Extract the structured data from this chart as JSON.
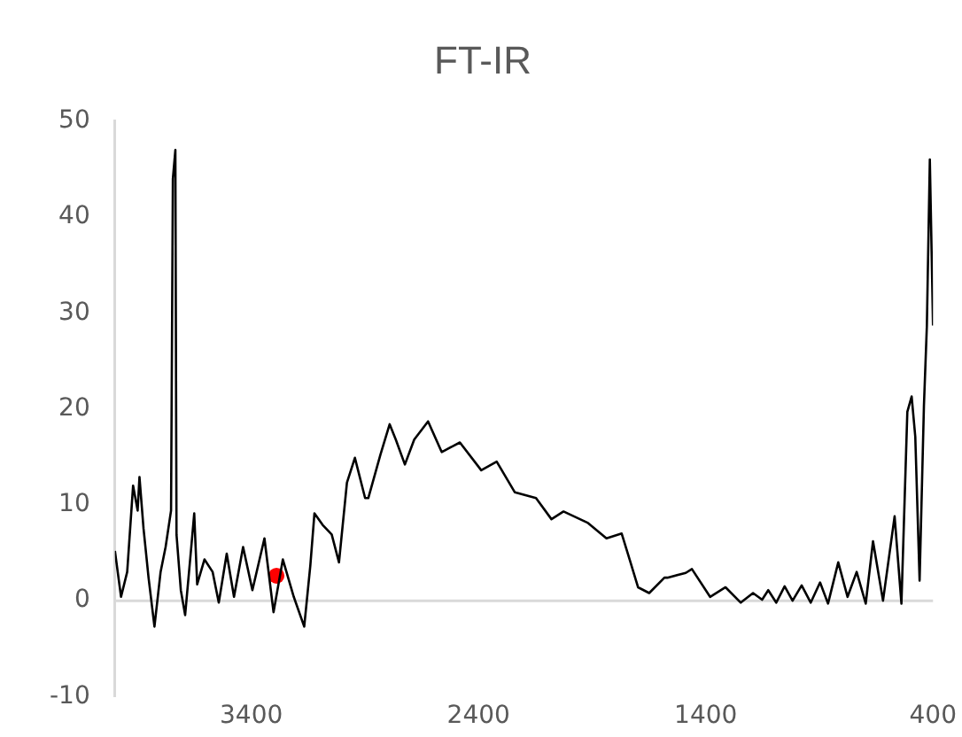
{
  "chart_data": {
    "type": "line",
    "title": "FT-IR",
    "xlim": [
      4000,
      400
    ],
    "xticks": [
      3400,
      2400,
      1400,
      400
    ],
    "ylim": [
      -10,
      50
    ],
    "yticks": [
      -10,
      0,
      10,
      20,
      30,
      40,
      50
    ],
    "grid": false,
    "legend": false,
    "marker": "none",
    "ref_lines": [
      {
        "axis": "y",
        "value": 0,
        "color": "#d9d9d9"
      }
    ],
    "series": [
      {
        "color": "#000000",
        "x": [
          4000,
          3973,
          3946,
          3920,
          3900,
          3892,
          3874,
          3852,
          3826,
          3799,
          3777,
          3753,
          3745,
          3734,
          3729,
          3710,
          3691,
          3664,
          3651,
          3638,
          3606,
          3570,
          3543,
          3508,
          3476,
          3436,
          3395,
          3342,
          3302,
          3261,
          3213,
          3167,
          3140,
          3122,
          3086,
          3046,
          3014,
          2979,
          2944,
          2899,
          2885,
          2832,
          2791,
          2764,
          2724,
          2683,
          2622,
          2562,
          2482,
          2388,
          2320,
          2240,
          2147,
          2079,
          2026,
          1918,
          1837,
          1770,
          1735,
          1698,
          1649,
          1582,
          1569,
          1488,
          1461,
          1381,
          1313,
          1246,
          1192,
          1152,
          1125,
          1090,
          1053,
          1018,
          978,
          938,
          897,
          862,
          817,
          776,
          736,
          696,
          664,
          620,
          569,
          539,
          513,
          494,
          478,
          459,
          440,
          427,
          414,
          400
        ],
        "values": [
          5.2,
          0.4,
          3,
          12,
          9.4,
          12.9,
          7.5,
          2.4,
          -2.7,
          3,
          5.6,
          9.4,
          44,
          47,
          6.9,
          1.1,
          -1.5,
          5.6,
          9.1,
          1.7,
          4.3,
          3,
          -0.2,
          4.9,
          0.4,
          5.6,
          1.1,
          6.5,
          -1.2,
          4.3,
          0.4,
          -2.7,
          3.7,
          9.1,
          7.9,
          6.9,
          4,
          12.3,
          14.9,
          10.7,
          10.7,
          15.2,
          18.4,
          16.8,
          14.2,
          16.8,
          18.7,
          15.5,
          16.5,
          13.6,
          14.5,
          11.3,
          10.7,
          8.5,
          9.3,
          8.1,
          6.5,
          7,
          4.3,
          1.4,
          0.8,
          2.4,
          2.4,
          2.9,
          3.3,
          0.4,
          1.4,
          -0.2,
          0.8,
          0.1,
          1.1,
          -0.2,
          1.5,
          0,
          1.6,
          -0.2,
          1.9,
          -0.3,
          4,
          0.4,
          3,
          -0.3,
          6.2,
          0,
          8.8,
          -0.3,
          19.7,
          21.3,
          17.1,
          2.1,
          20.3,
          28.7,
          46,
          28.7
        ]
      },
      {
        "type": "scatter",
        "marker": "circle",
        "color": "#ff0000",
        "x": [
          3289
        ],
        "values": [
          2.6
        ]
      }
    ]
  }
}
